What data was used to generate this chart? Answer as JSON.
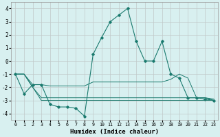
{
  "x": [
    0,
    1,
    2,
    3,
    4,
    5,
    6,
    7,
    8,
    9,
    10,
    11,
    12,
    13,
    14,
    15,
    16,
    17,
    18,
    19,
    20,
    21,
    22,
    23
  ],
  "line1": [
    -1.0,
    -2.5,
    -1.8,
    -1.8,
    -3.3,
    -3.5,
    -3.5,
    -3.6,
    -4.2,
    0.5,
    1.8,
    3.0,
    3.5,
    4.0,
    1.5,
    0.0,
    0.0,
    1.5,
    -1.0,
    -1.3,
    -2.8,
    -2.8,
    -2.9,
    -3.0
  ],
  "line2": [
    -1.0,
    -1.0,
    -1.8,
    -1.8,
    -1.9,
    -1.9,
    -1.9,
    -1.9,
    -1.9,
    -1.6,
    -1.6,
    -1.6,
    -1.6,
    -1.6,
    -1.6,
    -1.6,
    -1.6,
    -1.6,
    -1.4,
    -1.0,
    -1.3,
    -2.8,
    -2.8,
    -3.0
  ],
  "line3": [
    -1.0,
    -1.0,
    -2.0,
    -2.8,
    -2.8,
    -2.8,
    -2.8,
    -2.8,
    -2.8,
    -2.8,
    -2.8,
    -2.8,
    -2.8,
    -2.8,
    -2.8,
    -2.8,
    -2.8,
    -2.8,
    -2.8,
    -2.8,
    -2.8,
    -2.8,
    -2.8,
    -2.9
  ],
  "line4": [
    -1.0,
    -1.0,
    -2.0,
    -3.0,
    -3.0,
    -3.0,
    -3.0,
    -3.0,
    -3.0,
    -3.0,
    -3.0,
    -3.0,
    -3.0,
    -3.0,
    -3.0,
    -3.0,
    -3.0,
    -3.0,
    -3.0,
    -3.0,
    -3.0,
    -3.0,
    -3.0,
    -3.0
  ],
  "line_color": "#1a7a6e",
  "bg_color": "#d8f0f0",
  "grid_color": "#c0c8c8",
  "xlabel": "Humidex (Indice chaleur)",
  "ylim": [
    -4.5,
    4.5
  ],
  "xlim": [
    -0.5,
    23.5
  ],
  "yticks": [
    -4,
    -3,
    -2,
    -1,
    0,
    1,
    2,
    3,
    4
  ],
  "xticks": [
    0,
    1,
    2,
    3,
    4,
    5,
    6,
    7,
    8,
    9,
    10,
    11,
    12,
    13,
    14,
    15,
    16,
    17,
    18,
    19,
    20,
    21,
    22,
    23
  ]
}
